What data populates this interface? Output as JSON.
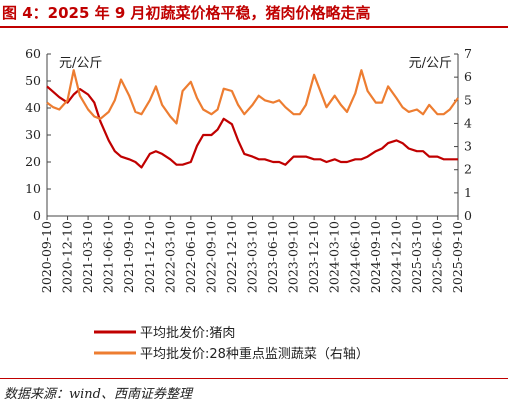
{
  "figure": {
    "title": "图 4：2025 年 9 月初蔬菜价格平稳，猪肉价格略走高",
    "source": "数据来源：wind、西南证券整理"
  },
  "chart_data": {
    "type": "line",
    "x_tick_labels": [
      "2020-09-10",
      "2020-12-10",
      "2021-03-10",
      "2021-06-10",
      "2021-09-10",
      "2021-12-10",
      "2022-03-10",
      "2022-06-10",
      "2022-09-10",
      "2022-12-10",
      "2023-03-10",
      "2023-06-10",
      "2023-09-10",
      "2023-12-10",
      "2024-03-10",
      "2024-06-10",
      "2024-09-10",
      "2024-12-10",
      "2025-03-10",
      "2025-06-10",
      "2025-09-10"
    ],
    "y_left": {
      "label": "元/公斤",
      "ylim": [
        0,
        60
      ],
      "ticks": [
        0,
        10,
        20,
        30,
        40,
        50,
        60
      ]
    },
    "y_right": {
      "label": "元/公斤",
      "ylim": [
        0,
        7
      ],
      "ticks": [
        0,
        1,
        2,
        3,
        4,
        5,
        6,
        7
      ]
    },
    "grid": false,
    "legend_position": "bottom-left",
    "series": [
      {
        "name": "平均批发价:猪肉",
        "axis": "left",
        "color": "#c00000",
        "x": [
          0,
          0.3,
          0.6,
          1,
          1.3,
          1.6,
          2,
          2.3,
          2.6,
          3,
          3.3,
          3.6,
          4,
          4.3,
          4.6,
          5,
          5.3,
          5.6,
          6,
          6.3,
          6.6,
          7,
          7.3,
          7.6,
          8,
          8.3,
          8.6,
          9,
          9.3,
          9.6,
          10,
          10.3,
          10.6,
          11,
          11.3,
          11.6,
          12,
          12.3,
          12.6,
          13,
          13.3,
          13.6,
          14,
          14.3,
          14.6,
          15,
          15.3,
          15.6,
          16,
          16.3,
          16.6,
          17,
          17.3,
          17.6,
          18,
          18.3,
          18.6,
          19,
          19.3,
          19.6,
          20
        ],
        "values": [
          48,
          46,
          44,
          42,
          45,
          47,
          45,
          42,
          35,
          28,
          24,
          22,
          21,
          20,
          18,
          23,
          24,
          23,
          21,
          19,
          19,
          20,
          26,
          30,
          30,
          32,
          36,
          34,
          28,
          23,
          22,
          21,
          21,
          20,
          20,
          19,
          22,
          22,
          22,
          21,
          21,
          20,
          21,
          20,
          20,
          21,
          21,
          22,
          24,
          25,
          27,
          28,
          27,
          25,
          24,
          24,
          22,
          22,
          21,
          21,
          21
        ]
      },
      {
        "name": "平均批发价:28种重点监测蔬菜（右轴）",
        "axis": "right",
        "color": "#ed7d31",
        "x": [
          0,
          0.3,
          0.6,
          1,
          1.3,
          1.6,
          2,
          2.3,
          2.6,
          3,
          3.3,
          3.6,
          4,
          4.3,
          4.6,
          5,
          5.3,
          5.6,
          6,
          6.3,
          6.6,
          7,
          7.3,
          7.6,
          8,
          8.3,
          8.6,
          9,
          9.3,
          9.6,
          10,
          10.3,
          10.6,
          11,
          11.3,
          11.6,
          12,
          12.3,
          12.6,
          13,
          13.3,
          13.6,
          14,
          14.3,
          14.6,
          15,
          15.3,
          15.6,
          16,
          16.3,
          16.6,
          17,
          17.3,
          17.6,
          18,
          18.3,
          18.6,
          19,
          19.3,
          19.6,
          20
        ],
        "values": [
          4.9,
          4.7,
          4.6,
          5.0,
          6.3,
          5.2,
          4.6,
          4.3,
          4.2,
          4.5,
          5.0,
          5.9,
          5.2,
          4.5,
          4.4,
          5.0,
          5.6,
          4.8,
          4.3,
          4.0,
          5.4,
          5.8,
          5.1,
          4.6,
          4.4,
          4.6,
          5.5,
          5.4,
          4.8,
          4.4,
          4.8,
          5.2,
          5.0,
          4.9,
          5.0,
          4.7,
          4.4,
          4.4,
          4.8,
          6.1,
          5.4,
          4.7,
          5.2,
          4.8,
          4.5,
          5.3,
          6.3,
          5.4,
          4.9,
          4.9,
          5.6,
          5.1,
          4.7,
          4.5,
          4.6,
          4.4,
          4.8,
          4.4,
          4.4,
          4.6,
          5.1
        ]
      }
    ]
  }
}
